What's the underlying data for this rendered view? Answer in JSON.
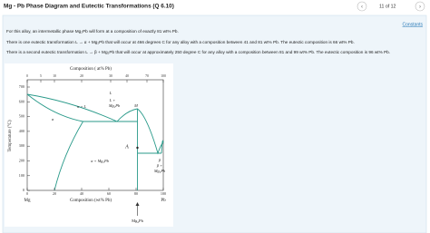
{
  "header": {
    "title": "Mg - Pb Phase Diagram and Eutectic Transformations (Q 6.10)",
    "pager": "11 of 12"
  },
  "content": {
    "constants_link": "Constants",
    "paragraphs": [
      "For this alloy, an intermetallic phase Mg₂Pb will form at a composition of exactly 81 wt% Pb.",
      "There is one eutectic transformation  L → α + Mg₂Pb  that will occur at 466 degrees C for any alloy with a composition between 41 and 81 wt% Pb.  The eutectic composition is 66 wt% Pb.",
      "There is a second eutectic transformation  L → β + Mg₂Pb  that will occur at approximately 250 degree C for any alloy with a composition between 81 and 99 wt% Pb.  The eutectic composition is 96 wt% Pb."
    ]
  },
  "figure": {
    "top_axis": {
      "title": "Composition ( at% Pb)",
      "ticks": [
        "0",
        "5",
        "10",
        "20",
        "30",
        "40",
        "70",
        "100"
      ]
    },
    "y_axis": {
      "title": "Temperature (°C)",
      "ticks": [
        "700",
        "600",
        "500",
        "400",
        "300",
        "200",
        "100",
        "0"
      ]
    },
    "x_axis": {
      "title": "Composition (wt% Pb)",
      "ticks": [
        "0",
        "20",
        "40",
        "60",
        "80",
        "100"
      ],
      "left_end": "Mg",
      "right_end": "Pb"
    },
    "region_labels": [
      "L",
      "L +",
      "Mg₂Pb",
      "M",
      "α + L",
      "α",
      "A",
      "α + Mg₂Pb",
      "β",
      "β +",
      "Mg₂Pb"
    ],
    "arrow_label": "Mg₂Pb"
  }
}
